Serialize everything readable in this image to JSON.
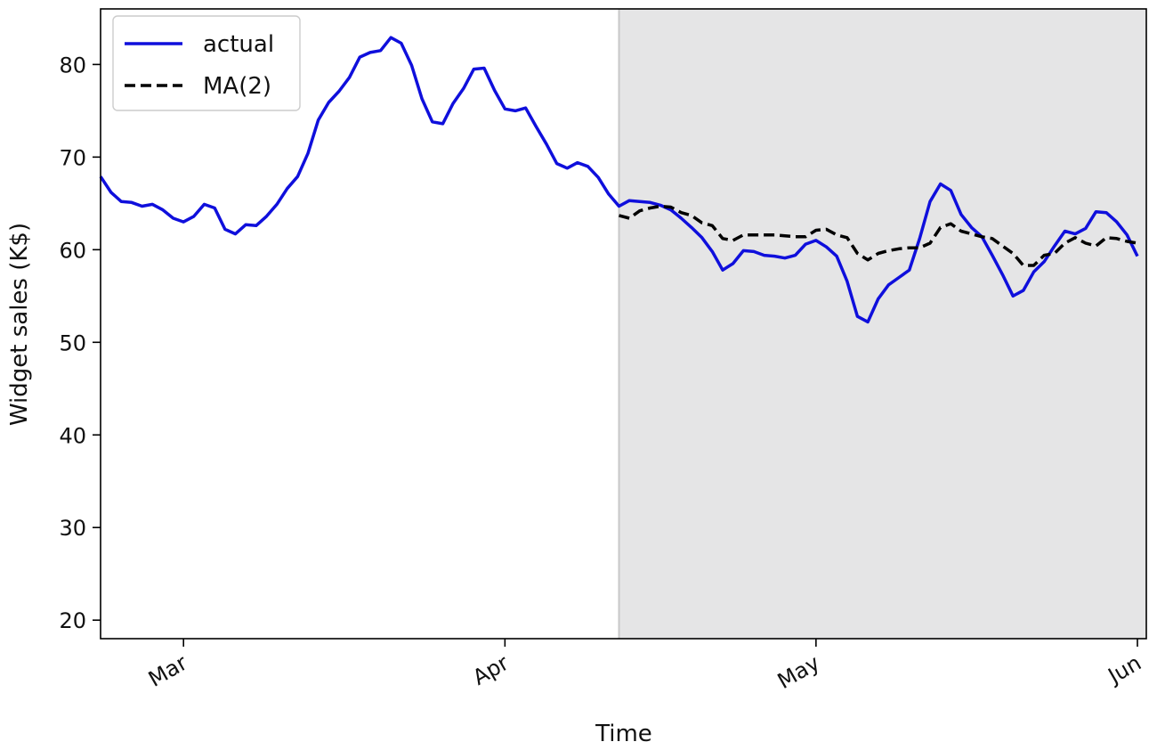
{
  "chart_data": {
    "type": "line",
    "title": "",
    "xlabel": "Time",
    "ylabel": "Widget sales (K$)",
    "x_type": "date",
    "x_range": [
      "2023-02-21",
      "2023-06-01"
    ],
    "xticks": [
      {
        "date": "2023-03-01",
        "label": "Mar"
      },
      {
        "date": "2023-04-01",
        "label": "Apr"
      },
      {
        "date": "2023-05-01",
        "label": "May"
      },
      {
        "date": "2023-06-01",
        "label": "Jun"
      }
    ],
    "ylim": [
      18,
      86
    ],
    "yticks": [
      20,
      30,
      40,
      50,
      60,
      70,
      80
    ],
    "grid": false,
    "legend": {
      "position": "top-left"
    },
    "shaded_region": {
      "start": "2023-04-12",
      "end": "2023-06-01",
      "color": "#e5e5e6",
      "edge_color": "#c8c8c8"
    },
    "series": [
      {
        "name": "actual",
        "color": "#0f0fdc",
        "style": "solid",
        "points": [
          [
            "2023-02-21",
            67.9
          ],
          [
            "2023-02-22",
            66.2
          ],
          [
            "2023-02-23",
            65.2
          ],
          [
            "2023-02-24",
            65.1
          ],
          [
            "2023-02-25",
            64.7
          ],
          [
            "2023-02-26",
            64.9
          ],
          [
            "2023-02-27",
            64.3
          ],
          [
            "2023-02-28",
            63.4
          ],
          [
            "2023-03-01",
            63.0
          ],
          [
            "2023-03-02",
            63.6
          ],
          [
            "2023-03-03",
            64.9
          ],
          [
            "2023-03-04",
            64.5
          ],
          [
            "2023-03-05",
            62.2
          ],
          [
            "2023-03-06",
            61.7
          ],
          [
            "2023-03-07",
            62.7
          ],
          [
            "2023-03-08",
            62.6
          ],
          [
            "2023-03-09",
            63.6
          ],
          [
            "2023-03-10",
            64.9
          ],
          [
            "2023-03-11",
            66.6
          ],
          [
            "2023-03-12",
            67.9
          ],
          [
            "2023-03-13",
            70.4
          ],
          [
            "2023-03-14",
            74.0
          ],
          [
            "2023-03-15",
            75.9
          ],
          [
            "2023-03-16",
            77.1
          ],
          [
            "2023-03-17",
            78.6
          ],
          [
            "2023-03-18",
            80.8
          ],
          [
            "2023-03-19",
            81.3
          ],
          [
            "2023-03-20",
            81.5
          ],
          [
            "2023-03-21",
            82.9
          ],
          [
            "2023-03-22",
            82.3
          ],
          [
            "2023-03-23",
            79.9
          ],
          [
            "2023-03-24",
            76.3
          ],
          [
            "2023-03-25",
            73.8
          ],
          [
            "2023-03-26",
            73.6
          ],
          [
            "2023-03-27",
            75.8
          ],
          [
            "2023-03-28",
            77.4
          ],
          [
            "2023-03-29",
            79.5
          ],
          [
            "2023-03-30",
            79.6
          ],
          [
            "2023-03-31",
            77.2
          ],
          [
            "2023-04-01",
            75.2
          ],
          [
            "2023-04-02",
            75.0
          ],
          [
            "2023-04-03",
            75.3
          ],
          [
            "2023-04-04",
            73.3
          ],
          [
            "2023-04-05",
            71.4
          ],
          [
            "2023-04-06",
            69.3
          ],
          [
            "2023-04-07",
            68.8
          ],
          [
            "2023-04-08",
            69.4
          ],
          [
            "2023-04-09",
            69.0
          ],
          [
            "2023-04-10",
            67.8
          ],
          [
            "2023-04-11",
            66.0
          ],
          [
            "2023-04-12",
            64.7
          ],
          [
            "2023-04-13",
            65.3
          ],
          [
            "2023-04-14",
            65.2
          ],
          [
            "2023-04-15",
            65.1
          ],
          [
            "2023-04-16",
            64.8
          ],
          [
            "2023-04-17",
            64.3
          ],
          [
            "2023-04-18",
            63.4
          ],
          [
            "2023-04-19",
            62.4
          ],
          [
            "2023-04-20",
            61.3
          ],
          [
            "2023-04-21",
            59.8
          ],
          [
            "2023-04-22",
            57.8
          ],
          [
            "2023-04-23",
            58.5
          ],
          [
            "2023-04-24",
            59.9
          ],
          [
            "2023-04-25",
            59.8
          ],
          [
            "2023-04-26",
            59.4
          ],
          [
            "2023-04-27",
            59.3
          ],
          [
            "2023-04-28",
            59.1
          ],
          [
            "2023-04-29",
            59.4
          ],
          [
            "2023-04-30",
            60.6
          ],
          [
            "2023-05-01",
            61.0
          ],
          [
            "2023-05-02",
            60.3
          ],
          [
            "2023-05-03",
            59.3
          ],
          [
            "2023-05-04",
            56.6
          ],
          [
            "2023-05-05",
            52.8
          ],
          [
            "2023-05-06",
            52.2
          ],
          [
            "2023-05-07",
            54.7
          ],
          [
            "2023-05-08",
            56.2
          ],
          [
            "2023-05-09",
            57.0
          ],
          [
            "2023-05-10",
            57.8
          ],
          [
            "2023-05-11",
            61.2
          ],
          [
            "2023-05-12",
            65.2
          ],
          [
            "2023-05-13",
            67.1
          ],
          [
            "2023-05-14",
            66.4
          ],
          [
            "2023-05-15",
            63.8
          ],
          [
            "2023-05-16",
            62.4
          ],
          [
            "2023-05-17",
            61.4
          ],
          [
            "2023-05-18",
            59.4
          ],
          [
            "2023-05-19",
            57.3
          ],
          [
            "2023-05-20",
            55.0
          ],
          [
            "2023-05-21",
            55.6
          ],
          [
            "2023-05-22",
            57.6
          ],
          [
            "2023-05-23",
            58.7
          ],
          [
            "2023-05-24",
            60.4
          ],
          [
            "2023-05-25",
            62.0
          ],
          [
            "2023-05-26",
            61.7
          ],
          [
            "2023-05-27",
            62.3
          ],
          [
            "2023-05-28",
            64.1
          ],
          [
            "2023-05-29",
            64.0
          ],
          [
            "2023-05-30",
            63.0
          ],
          [
            "2023-05-31",
            61.6
          ],
          [
            "2023-06-01",
            59.3
          ]
        ]
      },
      {
        "name": "MA(2)",
        "color": "#000000",
        "style": "dashed",
        "points": [
          [
            "2023-04-12",
            63.7
          ],
          [
            "2023-04-13",
            63.4
          ],
          [
            "2023-04-14",
            64.2
          ],
          [
            "2023-04-15",
            64.5
          ],
          [
            "2023-04-16",
            64.7
          ],
          [
            "2023-04-17",
            64.6
          ],
          [
            "2023-04-18",
            64.0
          ],
          [
            "2023-04-19",
            63.7
          ],
          [
            "2023-04-20",
            62.9
          ],
          [
            "2023-04-21",
            62.6
          ],
          [
            "2023-04-22",
            61.2
          ],
          [
            "2023-04-23",
            61.0
          ],
          [
            "2023-04-24",
            61.6
          ],
          [
            "2023-04-25",
            61.6
          ],
          [
            "2023-04-26",
            61.6
          ],
          [
            "2023-04-27",
            61.6
          ],
          [
            "2023-04-28",
            61.5
          ],
          [
            "2023-04-29",
            61.4
          ],
          [
            "2023-04-30",
            61.4
          ],
          [
            "2023-05-01",
            62.1
          ],
          [
            "2023-05-02",
            62.2
          ],
          [
            "2023-05-03",
            61.6
          ],
          [
            "2023-05-04",
            61.3
          ],
          [
            "2023-05-05",
            59.6
          ],
          [
            "2023-05-06",
            58.9
          ],
          [
            "2023-05-07",
            59.6
          ],
          [
            "2023-05-08",
            59.9
          ],
          [
            "2023-05-09",
            60.1
          ],
          [
            "2023-05-10",
            60.2
          ],
          [
            "2023-05-11",
            60.2
          ],
          [
            "2023-05-12",
            60.7
          ],
          [
            "2023-05-13",
            62.4
          ],
          [
            "2023-05-14",
            62.8
          ],
          [
            "2023-05-15",
            62.0
          ],
          [
            "2023-05-16",
            61.7
          ],
          [
            "2023-05-17",
            61.4
          ],
          [
            "2023-05-18",
            61.2
          ],
          [
            "2023-05-19",
            60.4
          ],
          [
            "2023-05-20",
            59.6
          ],
          [
            "2023-05-21",
            58.3
          ],
          [
            "2023-05-22",
            58.3
          ],
          [
            "2023-05-23",
            59.4
          ],
          [
            "2023-05-24",
            59.6
          ],
          [
            "2023-05-25",
            60.7
          ],
          [
            "2023-05-26",
            61.3
          ],
          [
            "2023-05-27",
            60.7
          ],
          [
            "2023-05-28",
            60.4
          ],
          [
            "2023-05-29",
            61.3
          ],
          [
            "2023-05-30",
            61.2
          ],
          [
            "2023-05-31",
            60.9
          ],
          [
            "2023-06-01",
            60.7
          ]
        ]
      }
    ]
  }
}
